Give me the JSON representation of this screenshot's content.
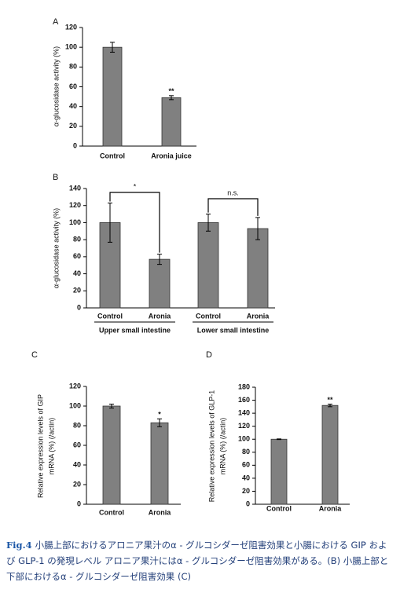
{
  "chart_data": [
    {
      "type": "bar",
      "panel": "A",
      "ylabel": [
        "α-glucosidase activity (%)"
      ],
      "categories": [
        "Control",
        "Aronia juice"
      ],
      "values": [
        100,
        49
      ],
      "errors": [
        5,
        2
      ],
      "annotations": [
        null,
        "**"
      ],
      "ylim": [
        0,
        120
      ],
      "yticks": [
        0,
        20,
        40,
        60,
        80,
        100,
        120
      ],
      "color": "#808080"
    },
    {
      "type": "bar",
      "panel": "B",
      "ylabel": [
        "α-glucosidase activity (%)"
      ],
      "categories": [
        "Control",
        "Aronia",
        "Control",
        "Aronia"
      ],
      "values": [
        100,
        57,
        100,
        93
      ],
      "errors": [
        23,
        6,
        10,
        13
      ],
      "groups": [
        "Upper small intestine",
        "Lower small intestine"
      ],
      "brackets": [
        "*",
        "n.s."
      ],
      "ylim": [
        0,
        140
      ],
      "yticks": [
        0,
        20,
        40,
        60,
        80,
        100,
        120,
        140
      ],
      "color": "#808080"
    },
    {
      "type": "bar",
      "panel": "C",
      "ylabel": [
        "Relative expression levels of GIP",
        "mRNA (%) (/actin)"
      ],
      "categories": [
        "Control",
        "Aronia"
      ],
      "values": [
        100,
        83
      ],
      "errors": [
        2,
        4
      ],
      "annotations": [
        null,
        "*"
      ],
      "ylim": [
        0,
        120
      ],
      "yticks": [
        0,
        20,
        40,
        60,
        80,
        100,
        120
      ],
      "color": "#808080"
    },
    {
      "type": "bar",
      "panel": "D",
      "ylabel": [
        "Relative expression levels of GLP-1",
        "mRNA (%) (/actin)"
      ],
      "categories": [
        "Control",
        "Aronia"
      ],
      "values": [
        100,
        152
      ],
      "errors": [
        0.5,
        2
      ],
      "annotations": [
        null,
        "**"
      ],
      "ylim": [
        0,
        180
      ],
      "yticks": [
        0,
        20,
        40,
        60,
        80,
        100,
        120,
        140,
        160,
        180
      ],
      "color": "#808080"
    }
  ],
  "caption": {
    "label": "Fig.4",
    "text": "小腸上部におけるアロニア果汁のα - グルコシダーゼ阻害効果と小腸における GIP および GLP-1 の発現レベル アロニア果汁にはα - グルコシダーゼ阻害効果がある。(B) 小腸上部と下部におけるα - グルコシダーゼ阻害効果 (C)"
  }
}
